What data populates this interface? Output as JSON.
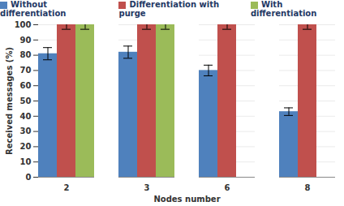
{
  "chart_data": {
    "type": "bar",
    "x_label": "Nodes number",
    "y_label": "Received messages (%)",
    "categories": [
      2,
      3,
      6,
      8
    ],
    "series": [
      {
        "name": "Without differentiation",
        "color": "#4f81bd",
        "values": [
          81,
          82,
          70,
          43
        ],
        "errors": [
          4,
          4,
          3.5,
          2.5
        ]
      },
      {
        "name": "Differentiation with purge",
        "color": "#c0504d",
        "values": [
          100,
          100,
          100,
          100
        ],
        "errors": [
          3,
          3,
          3,
          3
        ]
      },
      {
        "name": "With differentiation",
        "color": "#9bbb59",
        "values": [
          100,
          100,
          0,
          0
        ],
        "errors": [
          3,
          3,
          0,
          0
        ]
      }
    ],
    "ylim": [
      0,
      100
    ],
    "yticks": [
      0,
      10,
      20,
      30,
      40,
      50,
      60,
      70,
      80,
      90,
      100
    ],
    "grid": true,
    "legend": "top"
  }
}
